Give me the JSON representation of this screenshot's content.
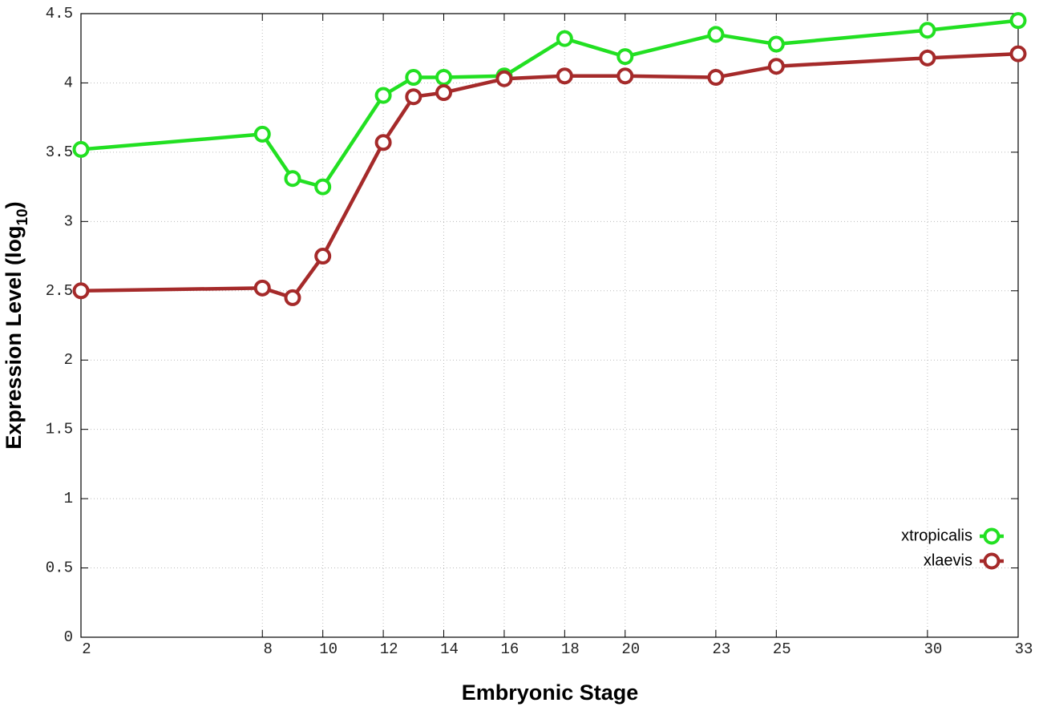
{
  "chart_data": {
    "type": "line",
    "xlabel": "Embryonic Stage",
    "ylabel": [
      "Expression Level (log",
      "10",
      ")"
    ],
    "x": [
      2,
      8,
      9,
      10,
      12,
      13,
      14,
      16,
      18,
      20,
      23,
      25,
      30,
      33
    ],
    "series": [
      {
        "name": "xtropicalis",
        "color": "#22e022",
        "values": [
          3.52,
          3.63,
          3.31,
          3.25,
          3.91,
          4.04,
          4.04,
          4.05,
          4.32,
          4.19,
          4.35,
          4.28,
          4.38,
          4.45
        ]
      },
      {
        "name": "xlaevis",
        "color": "#a52a2a",
        "values": [
          2.5,
          2.52,
          2.45,
          2.75,
          3.57,
          3.9,
          3.93,
          4.03,
          4.05,
          4.05,
          4.04,
          4.12,
          4.18,
          4.21
        ]
      }
    ],
    "xlim": [
      2,
      33
    ],
    "ylim": [
      0,
      4.5
    ],
    "xticks": [
      2,
      8,
      10,
      12,
      14,
      16,
      18,
      20,
      23,
      25,
      30,
      33
    ],
    "yticks": [
      0,
      0.5,
      1,
      1.5,
      2,
      2.5,
      3,
      3.5,
      4,
      4.5
    ],
    "grid": true,
    "legend": "bottom-right",
    "markers": "circle"
  }
}
